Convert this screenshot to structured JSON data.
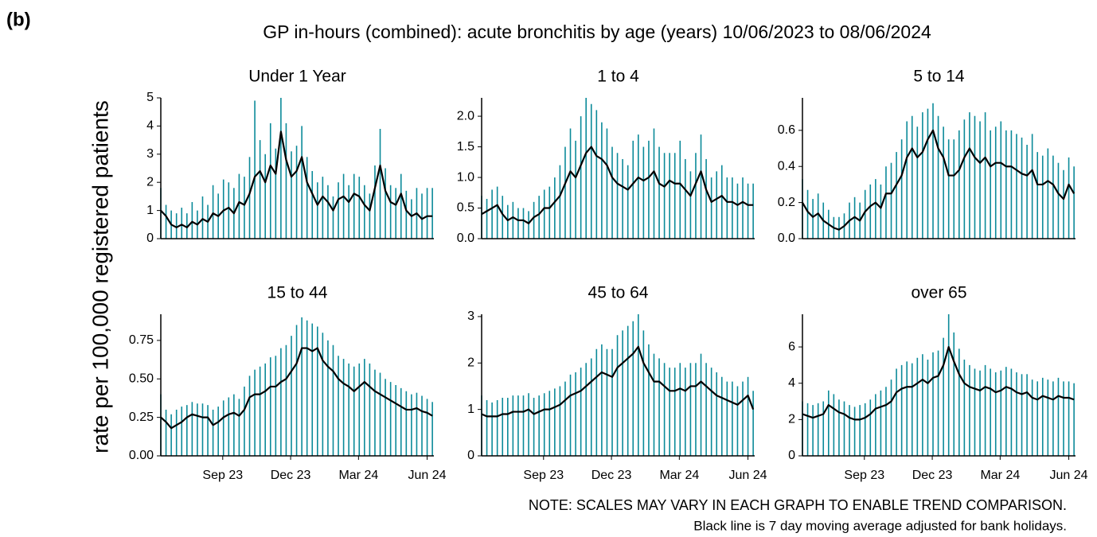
{
  "label": "(b)",
  "title": "GP in-hours (combined): acute bronchitis by age (years) 10/06/2023 to 08/06/2024",
  "y_label": "rate per 100,000 registered patients",
  "notes": [
    "NOTE: SCALES MAY VARY IN EACH GRAPH TO ENABLE TREND COMPARISON.",
    "Black line is 7 day moving average adjusted for bank holidays."
  ],
  "chart_data": [
    {
      "type": "line",
      "title": "Under 1 Year",
      "xlim": [
        0,
        366
      ],
      "ylim": [
        0,
        5
      ],
      "yticks": [
        0,
        1,
        2,
        3,
        4,
        5
      ],
      "x": [
        0,
        7,
        14,
        21,
        28,
        35,
        42,
        49,
        56,
        63,
        70,
        77,
        84,
        91,
        98,
        105,
        112,
        119,
        126,
        133,
        140,
        147,
        154,
        161,
        168,
        175,
        182,
        189,
        196,
        203,
        210,
        217,
        224,
        231,
        238,
        245,
        252,
        259,
        266,
        273,
        280,
        287,
        294,
        301,
        308,
        315,
        322,
        329,
        336,
        343,
        350,
        357,
        364
      ],
      "series": [
        {
          "mark": "spike",
          "color": "#0b8a99",
          "values": [
            1.8,
            1.2,
            1.0,
            0.9,
            1.1,
            0.9,
            1.3,
            1.0,
            1.5,
            1.2,
            1.9,
            1.6,
            2.1,
            2.0,
            1.8,
            2.3,
            2.2,
            2.9,
            4.9,
            3.5,
            3.0,
            4.1,
            3.2,
            5.0,
            4.1,
            3.1,
            3.3,
            4.0,
            2.9,
            2.4,
            2.0,
            2.2,
            1.9,
            1.5,
            2.0,
            2.3,
            1.9,
            2.3,
            2.2,
            1.9,
            1.6,
            2.6,
            3.9,
            2.5,
            1.9,
            1.8,
            2.3,
            1.7,
            1.4,
            1.8,
            1.6,
            1.8,
            1.8
          ]
        },
        {
          "mark": "line",
          "color": "#000000",
          "values": [
            1.0,
            0.8,
            0.5,
            0.4,
            0.5,
            0.4,
            0.6,
            0.5,
            0.7,
            0.6,
            0.9,
            0.8,
            1.0,
            1.1,
            0.9,
            1.3,
            1.2,
            1.6,
            2.2,
            2.4,
            2.0,
            2.6,
            2.3,
            3.8,
            2.8,
            2.2,
            2.4,
            2.9,
            2.0,
            1.6,
            1.2,
            1.5,
            1.3,
            1.0,
            1.4,
            1.5,
            1.3,
            1.6,
            1.5,
            1.2,
            1.0,
            1.8,
            2.6,
            1.7,
            1.3,
            1.2,
            1.6,
            1.0,
            0.8,
            0.9,
            0.7,
            0.8,
            0.8
          ]
        }
      ]
    },
    {
      "type": "line",
      "title": "1 to 4",
      "xlim": [
        0,
        366
      ],
      "ylim": [
        0,
        2.3
      ],
      "yticks": [
        {
          "value": 0,
          "label": "0.0"
        },
        0.5,
        {
          "value": 1,
          "label": "1.0"
        },
        1.5,
        {
          "value": 2,
          "label": "2.0"
        }
      ],
      "x": [
        0,
        7,
        14,
        21,
        28,
        35,
        42,
        49,
        56,
        63,
        70,
        77,
        84,
        91,
        98,
        105,
        112,
        119,
        126,
        133,
        140,
        147,
        154,
        161,
        168,
        175,
        182,
        189,
        196,
        203,
        210,
        217,
        224,
        231,
        238,
        245,
        252,
        259,
        266,
        273,
        280,
        287,
        294,
        301,
        308,
        315,
        322,
        329,
        336,
        343,
        350,
        357,
        364
      ],
      "series": [
        {
          "mark": "spike",
          "color": "#0b8a99",
          "values": [
            0.7,
            0.65,
            0.8,
            0.85,
            0.7,
            0.55,
            0.6,
            0.5,
            0.5,
            0.45,
            0.6,
            0.7,
            0.8,
            0.85,
            1.0,
            1.2,
            1.5,
            1.8,
            1.6,
            2.0,
            2.3,
            2.2,
            2.1,
            1.9,
            1.8,
            1.5,
            1.4,
            1.3,
            1.2,
            1.6,
            1.7,
            1.5,
            1.6,
            1.8,
            1.5,
            1.4,
            1.4,
            1.4,
            1.6,
            1.3,
            1.1,
            1.4,
            1.7,
            1.3,
            1.0,
            1.1,
            1.2,
            1.0,
            1.0,
            0.9,
            1.0,
            0.9,
            0.9
          ]
        },
        {
          "mark": "line",
          "color": "#000000",
          "values": [
            0.4,
            0.45,
            0.5,
            0.55,
            0.4,
            0.3,
            0.35,
            0.3,
            0.3,
            0.25,
            0.35,
            0.4,
            0.5,
            0.5,
            0.6,
            0.7,
            0.9,
            1.1,
            1.0,
            1.2,
            1.4,
            1.5,
            1.35,
            1.3,
            1.2,
            1.0,
            0.9,
            0.85,
            0.8,
            0.9,
            1.0,
            0.95,
            1.0,
            1.1,
            0.9,
            0.85,
            0.95,
            0.9,
            0.9,
            0.8,
            0.7,
            0.9,
            1.1,
            0.8,
            0.6,
            0.65,
            0.7,
            0.6,
            0.6,
            0.55,
            0.6,
            0.55,
            0.55
          ]
        }
      ]
    },
    {
      "type": "line",
      "title": "5 to 14",
      "xlim": [
        0,
        366
      ],
      "ylim": [
        0,
        0.78
      ],
      "yticks": [
        {
          "value": 0,
          "label": "0.0"
        },
        0.2,
        0.4,
        0.6
      ],
      "x": [
        0,
        7,
        14,
        21,
        28,
        35,
        42,
        49,
        56,
        63,
        70,
        77,
        84,
        91,
        98,
        105,
        112,
        119,
        126,
        133,
        140,
        147,
        154,
        161,
        168,
        175,
        182,
        189,
        196,
        203,
        210,
        217,
        224,
        231,
        238,
        245,
        252,
        259,
        266,
        273,
        280,
        287,
        294,
        301,
        308,
        315,
        322,
        329,
        336,
        343,
        350,
        357,
        364
      ],
      "series": [
        {
          "mark": "spike",
          "color": "#0b8a99",
          "values": [
            0.33,
            0.27,
            0.22,
            0.25,
            0.2,
            0.16,
            0.12,
            0.12,
            0.14,
            0.2,
            0.23,
            0.2,
            0.27,
            0.3,
            0.33,
            0.3,
            0.4,
            0.42,
            0.48,
            0.55,
            0.65,
            0.68,
            0.62,
            0.7,
            0.72,
            0.75,
            0.68,
            0.62,
            0.55,
            0.55,
            0.6,
            0.66,
            0.7,
            0.68,
            0.65,
            0.7,
            0.6,
            0.62,
            0.65,
            0.6,
            0.6,
            0.58,
            0.56,
            0.52,
            0.58,
            0.48,
            0.46,
            0.5,
            0.46,
            0.42,
            0.38,
            0.45,
            0.4
          ]
        },
        {
          "mark": "line",
          "color": "#000000",
          "values": [
            0.2,
            0.15,
            0.12,
            0.14,
            0.1,
            0.08,
            0.06,
            0.05,
            0.07,
            0.1,
            0.12,
            0.1,
            0.15,
            0.18,
            0.2,
            0.17,
            0.25,
            0.25,
            0.3,
            0.35,
            0.45,
            0.5,
            0.45,
            0.48,
            0.55,
            0.6,
            0.5,
            0.45,
            0.35,
            0.35,
            0.38,
            0.45,
            0.5,
            0.45,
            0.42,
            0.45,
            0.4,
            0.42,
            0.42,
            0.4,
            0.4,
            0.38,
            0.36,
            0.35,
            0.38,
            0.3,
            0.3,
            0.32,
            0.3,
            0.25,
            0.22,
            0.3,
            0.25
          ]
        }
      ]
    },
    {
      "type": "line",
      "title": "15 to 44",
      "xlim": [
        0,
        366
      ],
      "ylim": [
        0,
        0.92
      ],
      "yticks": [
        {
          "value": 0,
          "label": "0.00"
        },
        0.25,
        {
          "value": 0.5,
          "label": "0.50"
        },
        0.75
      ],
      "xticks": [
        {
          "value": 83,
          "label": "Sep 23"
        },
        {
          "value": 174,
          "label": "Dec 23"
        },
        {
          "value": 265,
          "label": "Mar 24"
        },
        {
          "value": 357,
          "label": "Jun 24"
        }
      ],
      "x": [
        0,
        7,
        14,
        21,
        28,
        35,
        42,
        49,
        56,
        63,
        70,
        77,
        84,
        91,
        98,
        105,
        112,
        119,
        126,
        133,
        140,
        147,
        154,
        161,
        168,
        175,
        182,
        189,
        196,
        203,
        210,
        217,
        224,
        231,
        238,
        245,
        252,
        259,
        266,
        273,
        280,
        287,
        294,
        301,
        308,
        315,
        322,
        329,
        336,
        343,
        350,
        357,
        364
      ],
      "series": [
        {
          "mark": "spike",
          "color": "#0b8a99",
          "values": [
            0.4,
            0.3,
            0.27,
            0.3,
            0.32,
            0.33,
            0.35,
            0.34,
            0.34,
            0.33,
            0.3,
            0.32,
            0.36,
            0.38,
            0.4,
            0.37,
            0.45,
            0.52,
            0.56,
            0.58,
            0.6,
            0.64,
            0.65,
            0.7,
            0.72,
            0.78,
            0.85,
            0.9,
            0.88,
            0.86,
            0.84,
            0.8,
            0.75,
            0.72,
            0.65,
            0.63,
            0.6,
            0.58,
            0.6,
            0.63,
            0.6,
            0.56,
            0.54,
            0.5,
            0.48,
            0.46,
            0.44,
            0.42,
            0.4,
            0.41,
            0.39,
            0.37,
            0.35
          ]
        },
        {
          "mark": "line",
          "color": "#000000",
          "values": [
            0.25,
            0.22,
            0.18,
            0.2,
            0.22,
            0.25,
            0.27,
            0.26,
            0.25,
            0.25,
            0.2,
            0.22,
            0.25,
            0.27,
            0.28,
            0.26,
            0.3,
            0.38,
            0.4,
            0.4,
            0.42,
            0.45,
            0.45,
            0.48,
            0.5,
            0.55,
            0.6,
            0.7,
            0.7,
            0.68,
            0.7,
            0.62,
            0.58,
            0.55,
            0.5,
            0.47,
            0.45,
            0.42,
            0.45,
            0.48,
            0.45,
            0.42,
            0.4,
            0.38,
            0.36,
            0.34,
            0.32,
            0.3,
            0.3,
            0.31,
            0.29,
            0.28,
            0.26
          ]
        }
      ]
    },
    {
      "type": "line",
      "title": "45 to 64",
      "xlim": [
        0,
        366
      ],
      "ylim": [
        0,
        3.05
      ],
      "yticks": [
        0,
        1,
        2,
        3
      ],
      "xticks": [
        {
          "value": 83,
          "label": "Sep 23"
        },
        {
          "value": 174,
          "label": "Dec 23"
        },
        {
          "value": 265,
          "label": "Mar 24"
        },
        {
          "value": 357,
          "label": "Jun 24"
        }
      ],
      "x": [
        0,
        7,
        14,
        21,
        28,
        35,
        42,
        49,
        56,
        63,
        70,
        77,
        84,
        91,
        98,
        105,
        112,
        119,
        126,
        133,
        140,
        147,
        154,
        161,
        168,
        175,
        182,
        189,
        196,
        203,
        210,
        217,
        224,
        231,
        238,
        245,
        252,
        259,
        266,
        273,
        280,
        287,
        294,
        301,
        308,
        315,
        322,
        329,
        336,
        343,
        350,
        357,
        364
      ],
      "series": [
        {
          "mark": "spike",
          "color": "#0b8a99",
          "values": [
            1.3,
            1.2,
            1.15,
            1.2,
            1.25,
            1.25,
            1.3,
            1.3,
            1.3,
            1.35,
            1.25,
            1.3,
            1.35,
            1.4,
            1.45,
            1.5,
            1.6,
            1.75,
            1.8,
            1.9,
            2.0,
            2.1,
            2.3,
            2.4,
            2.3,
            2.3,
            2.6,
            2.7,
            2.8,
            2.9,
            3.05,
            2.7,
            2.4,
            2.2,
            2.1,
            2.0,
            1.9,
            1.9,
            2.0,
            1.9,
            2.0,
            2.0,
            2.2,
            2.0,
            1.9,
            1.8,
            1.7,
            1.6,
            1.6,
            1.5,
            1.6,
            1.7,
            1.4
          ]
        },
        {
          "mark": "line",
          "color": "#000000",
          "values": [
            0.9,
            0.85,
            0.85,
            0.85,
            0.9,
            0.9,
            0.95,
            0.95,
            0.95,
            1.0,
            0.9,
            0.95,
            1.0,
            1.0,
            1.05,
            1.1,
            1.2,
            1.3,
            1.35,
            1.4,
            1.5,
            1.6,
            1.7,
            1.8,
            1.75,
            1.7,
            1.9,
            2.0,
            2.1,
            2.2,
            2.35,
            2.0,
            1.8,
            1.6,
            1.6,
            1.5,
            1.4,
            1.4,
            1.45,
            1.4,
            1.5,
            1.5,
            1.6,
            1.5,
            1.4,
            1.3,
            1.25,
            1.2,
            1.15,
            1.1,
            1.2,
            1.3,
            1.0
          ]
        }
      ]
    },
    {
      "type": "line",
      "title": "over 65",
      "xlim": [
        0,
        366
      ],
      "ylim": [
        0,
        7.8
      ],
      "yticks": [
        0,
        2,
        4,
        6
      ],
      "xticks": [
        {
          "value": 83,
          "label": "Sep 23"
        },
        {
          "value": 174,
          "label": "Dec 23"
        },
        {
          "value": 265,
          "label": "Mar 24"
        },
        {
          "value": 357,
          "label": "Jun 24"
        }
      ],
      "x": [
        0,
        7,
        14,
        21,
        28,
        35,
        42,
        49,
        56,
        63,
        70,
        77,
        84,
        91,
        98,
        105,
        112,
        119,
        126,
        133,
        140,
        147,
        154,
        161,
        168,
        175,
        182,
        189,
        196,
        203,
        210,
        217,
        224,
        231,
        238,
        245,
        252,
        259,
        266,
        273,
        280,
        287,
        294,
        301,
        308,
        315,
        322,
        329,
        336,
        343,
        350,
        357,
        364
      ],
      "series": [
        {
          "mark": "spike",
          "color": "#0b8a99",
          "values": [
            3.0,
            2.9,
            2.8,
            2.9,
            3.0,
            3.6,
            3.4,
            3.1,
            3.0,
            2.8,
            2.7,
            2.8,
            2.9,
            3.1,
            3.4,
            3.6,
            3.8,
            4.2,
            4.8,
            5.0,
            5.2,
            5.1,
            5.4,
            5.6,
            5.3,
            5.7,
            5.8,
            6.5,
            7.8,
            6.8,
            5.9,
            5.3,
            5.0,
            4.8,
            4.7,
            5.0,
            4.8,
            4.6,
            4.7,
            4.9,
            4.8,
            4.6,
            4.5,
            4.5,
            4.2,
            4.1,
            4.3,
            4.2,
            4.1,
            4.3,
            4.1,
            4.1,
            4.0
          ]
        },
        {
          "mark": "line",
          "color": "#000000",
          "values": [
            2.3,
            2.2,
            2.1,
            2.2,
            2.3,
            2.8,
            2.6,
            2.4,
            2.3,
            2.1,
            2.0,
            2.0,
            2.1,
            2.3,
            2.6,
            2.7,
            2.8,
            3.0,
            3.5,
            3.7,
            3.8,
            3.8,
            4.0,
            4.2,
            4.0,
            4.3,
            4.4,
            5.0,
            6.0,
            5.2,
            4.5,
            4.0,
            3.8,
            3.7,
            3.6,
            3.8,
            3.7,
            3.5,
            3.6,
            3.8,
            3.7,
            3.5,
            3.4,
            3.5,
            3.2,
            3.1,
            3.3,
            3.2,
            3.1,
            3.3,
            3.2,
            3.2,
            3.1
          ]
        }
      ]
    }
  ]
}
